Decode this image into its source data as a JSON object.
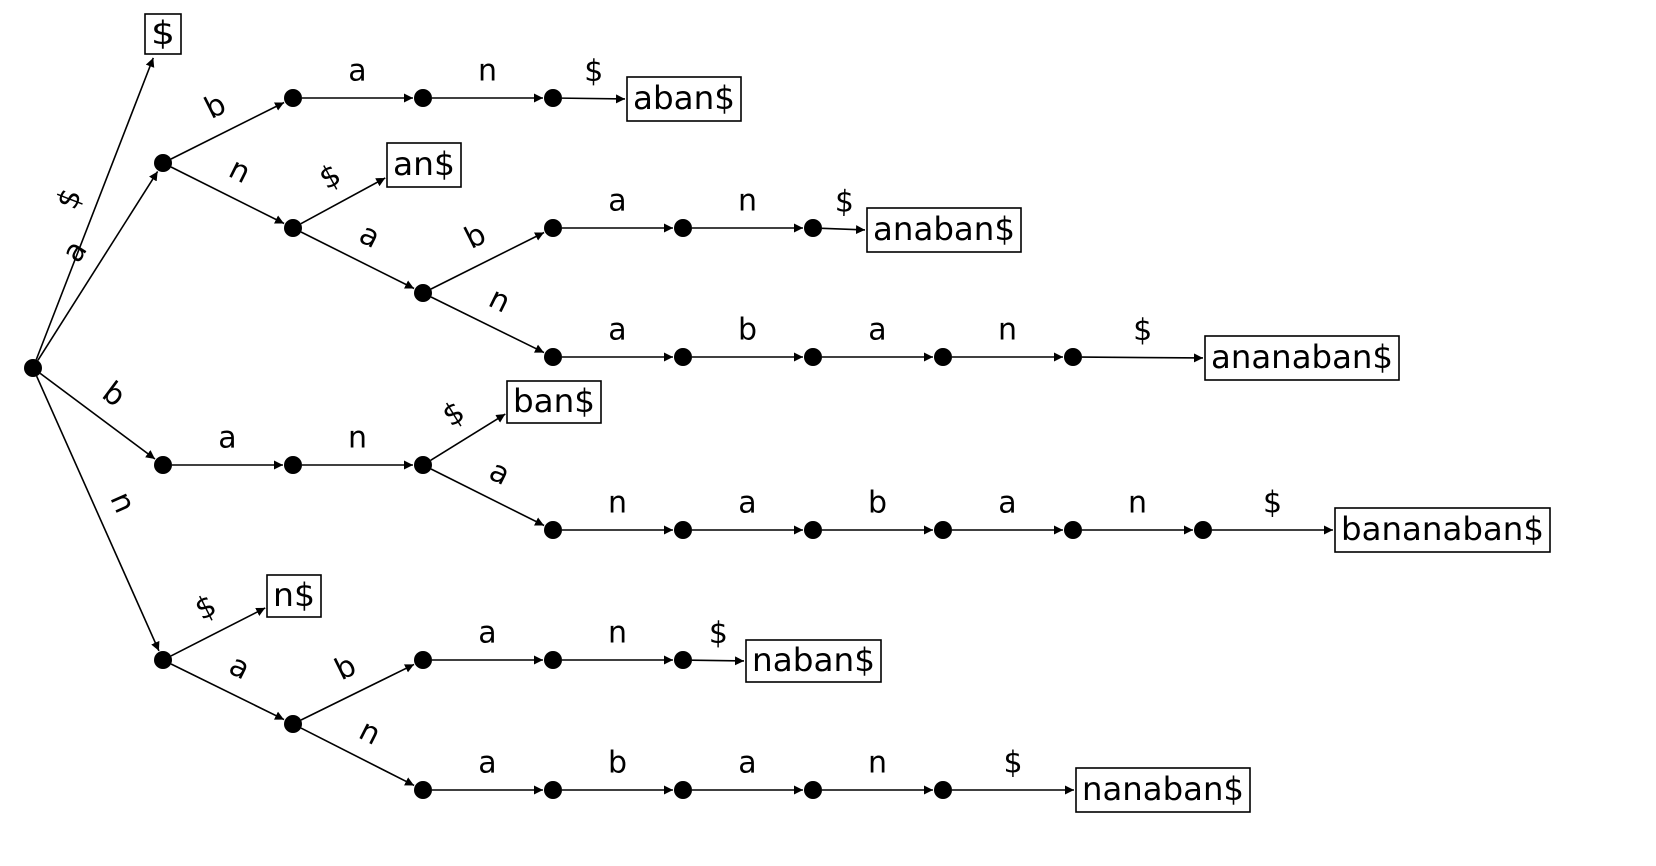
{
  "diagram": {
    "type": "suffix-trie",
    "colors": {
      "ink": "#000000",
      "background": "#ffffff"
    },
    "nodes": [
      {
        "id": "root"
      },
      {
        "id": "a"
      },
      {
        "id": "ab"
      },
      {
        "id": "aba"
      },
      {
        "id": "aban"
      },
      {
        "id": "an"
      },
      {
        "id": "ana"
      },
      {
        "id": "anab"
      },
      {
        "id": "anaba"
      },
      {
        "id": "anaban"
      },
      {
        "id": "anan"
      },
      {
        "id": "anana"
      },
      {
        "id": "ananab"
      },
      {
        "id": "ananaba"
      },
      {
        "id": "ananaban"
      },
      {
        "id": "b"
      },
      {
        "id": "ba"
      },
      {
        "id": "ban"
      },
      {
        "id": "bana"
      },
      {
        "id": "banan"
      },
      {
        "id": "banana"
      },
      {
        "id": "bananab"
      },
      {
        "id": "bananaba"
      },
      {
        "id": "bananaban"
      },
      {
        "id": "n"
      },
      {
        "id": "na"
      },
      {
        "id": "nab"
      },
      {
        "id": "naba"
      },
      {
        "id": "naban"
      },
      {
        "id": "nan"
      },
      {
        "id": "nana"
      },
      {
        "id": "nanab"
      },
      {
        "id": "nanaba"
      },
      {
        "id": "nanaban"
      }
    ],
    "leaves": [
      {
        "id": "leaf-dollar",
        "label": "$"
      },
      {
        "id": "leaf-aban",
        "label": "aban$"
      },
      {
        "id": "leaf-an",
        "label": "an$"
      },
      {
        "id": "leaf-anaban",
        "label": "anaban$"
      },
      {
        "id": "leaf-ananaban",
        "label": "ananaban$"
      },
      {
        "id": "leaf-ban",
        "label": "ban$"
      },
      {
        "id": "leaf-bananaban",
        "label": "bananaban$"
      },
      {
        "id": "leaf-n",
        "label": "n$"
      },
      {
        "id": "leaf-naban",
        "label": "naban$"
      },
      {
        "id": "leaf-nanaban",
        "label": "nanaban$"
      }
    ],
    "edges": [
      {
        "from": "root",
        "to": "leaf-dollar",
        "label": "$"
      },
      {
        "from": "root",
        "to": "a",
        "label": "a"
      },
      {
        "from": "root",
        "to": "b",
        "label": "b"
      },
      {
        "from": "root",
        "to": "n",
        "label": "n"
      },
      {
        "from": "a",
        "to": "ab",
        "label": "b"
      },
      {
        "from": "ab",
        "to": "aba",
        "label": "a"
      },
      {
        "from": "aba",
        "to": "aban",
        "label": "n"
      },
      {
        "from": "aban",
        "to": "leaf-aban",
        "label": "$"
      },
      {
        "from": "a",
        "to": "an",
        "label": "n"
      },
      {
        "from": "an",
        "to": "leaf-an",
        "label": "$"
      },
      {
        "from": "an",
        "to": "ana",
        "label": "a"
      },
      {
        "from": "ana",
        "to": "anab",
        "label": "b"
      },
      {
        "from": "anab",
        "to": "anaba",
        "label": "a"
      },
      {
        "from": "anaba",
        "to": "anaban",
        "label": "n"
      },
      {
        "from": "anaban",
        "to": "leaf-anaban",
        "label": "$"
      },
      {
        "from": "ana",
        "to": "anan",
        "label": "n"
      },
      {
        "from": "anan",
        "to": "anana",
        "label": "a"
      },
      {
        "from": "anana",
        "to": "ananab",
        "label": "b"
      },
      {
        "from": "ananab",
        "to": "ananaba",
        "label": "a"
      },
      {
        "from": "ananaba",
        "to": "ananaban",
        "label": "n"
      },
      {
        "from": "ananaban",
        "to": "leaf-ananaban",
        "label": "$"
      },
      {
        "from": "b",
        "to": "ba",
        "label": "a"
      },
      {
        "from": "ba",
        "to": "ban",
        "label": "n"
      },
      {
        "from": "ban",
        "to": "leaf-ban",
        "label": "$"
      },
      {
        "from": "ban",
        "to": "bana",
        "label": "a"
      },
      {
        "from": "bana",
        "to": "banan",
        "label": "n"
      },
      {
        "from": "banan",
        "to": "banana",
        "label": "a"
      },
      {
        "from": "banana",
        "to": "bananab",
        "label": "b"
      },
      {
        "from": "bananab",
        "to": "bananaba",
        "label": "a"
      },
      {
        "from": "bananaba",
        "to": "bananaban",
        "label": "n"
      },
      {
        "from": "bananaban",
        "to": "leaf-bananaban",
        "label": "$"
      },
      {
        "from": "n",
        "to": "leaf-n",
        "label": "$"
      },
      {
        "from": "n",
        "to": "na",
        "label": "a"
      },
      {
        "from": "na",
        "to": "nab",
        "label": "b"
      },
      {
        "from": "nab",
        "to": "naba",
        "label": "a"
      },
      {
        "from": "naba",
        "to": "naban",
        "label": "n"
      },
      {
        "from": "naban",
        "to": "leaf-naban",
        "label": "$"
      },
      {
        "from": "na",
        "to": "nan",
        "label": "n"
      },
      {
        "from": "nan",
        "to": "nana",
        "label": "a"
      },
      {
        "from": "nana",
        "to": "nanab",
        "label": "b"
      },
      {
        "from": "nanab",
        "to": "nanaba",
        "label": "a"
      },
      {
        "from": "nanaba",
        "to": "nanaban",
        "label": "n"
      },
      {
        "from": "nanaban",
        "to": "leaf-nanaban",
        "label": "$"
      }
    ]
  }
}
